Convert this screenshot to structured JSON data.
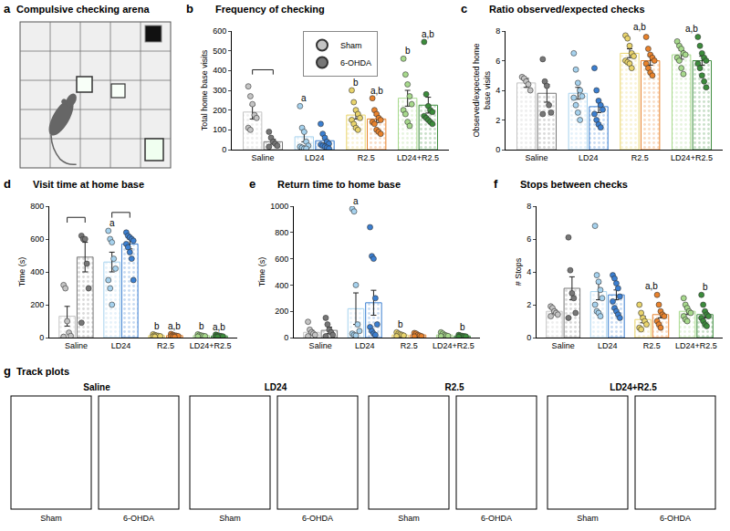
{
  "chart_data": [
    {
      "type": "bar",
      "letter": "b",
      "title": "Frequency of checking",
      "y_label": "Total home base visits",
      "categories": [
        "Saline",
        "LD24",
        "R2.5",
        "LD24+R2.5"
      ],
      "ylim": [
        0,
        600
      ],
      "yticks": [
        0,
        100,
        200,
        300,
        400,
        500,
        600
      ],
      "legend": "top",
      "brackets": [
        "Saline"
      ],
      "series": [
        {
          "name": "Sham",
          "colors": [
            "#c4c4c4",
            "#a6d2ee",
            "#e9d46c",
            "#a7d98c"
          ],
          "values": [
            190,
            65,
            175,
            260
          ],
          "errors": [
            35,
            25,
            20,
            40
          ],
          "points": [
            [
              320,
              270,
              230,
              175,
              160,
              110,
              100
            ],
            [
              220,
              110,
              90,
              40,
              20,
              15,
              10,
              5,
              5
            ],
            [
              300,
              240,
              200,
              180,
              160,
              150,
              130,
              110,
              100
            ],
            [
              460,
              380,
              330,
              270,
              230,
              200,
              180,
              140,
              120
            ]
          ],
          "labels": [
            null,
            "a",
            "b",
            "b"
          ]
        },
        {
          "name": "6-OHDA",
          "colors": [
            "#777777",
            "#3b7fd1",
            "#e8822c",
            "#3c8c3c"
          ],
          "values": [
            40,
            45,
            155,
            225
          ],
          "errors": [
            12,
            12,
            18,
            40
          ],
          "points": [
            [
              90,
              60,
              40,
              30,
              20,
              15
            ],
            [
              130,
              80,
              60,
              40,
              30,
              25,
              20,
              15,
              10,
              5
            ],
            [
              260,
              200,
              180,
              160,
              150,
              140,
              130,
              100,
              90,
              80
            ],
            [
              545,
              280,
              220,
              200,
              190,
              170,
              160,
              150,
              140,
              130
            ]
          ],
          "labels": [
            null,
            null,
            "a,b",
            "a,b"
          ]
        }
      ]
    },
    {
      "type": "bar",
      "letter": "c",
      "title": "Ratio observed/expected checks",
      "y_label": "Observed/expected home base visits",
      "categories": [
        "Saline",
        "LD24",
        "R2.5",
        "LD24+R2.5"
      ],
      "ylim": [
        0,
        8
      ],
      "yticks": [
        0,
        2,
        4,
        6,
        8
      ],
      "group_labels": [
        null,
        null,
        "a,b",
        "a,b"
      ],
      "series": [
        {
          "name": "Sham",
          "colors": [
            "#c4c4c4",
            "#a6d2ee",
            "#e9d46c",
            "#a7d98c"
          ],
          "values": [
            4.5,
            3.8,
            6.5,
            6.4
          ],
          "errors": [
            0.3,
            0.4,
            0.3,
            0.3
          ],
          "points": [
            [
              4.9,
              4.8,
              4.6,
              4.4,
              4.0
            ],
            [
              6.5,
              5.4,
              4.5,
              4.0,
              3.6,
              3.5,
              3.0,
              2.5,
              2.0
            ],
            [
              7.7,
              7.5,
              7.0,
              6.5,
              6.3,
              6.0,
              5.9,
              5.8,
              5.5
            ],
            [
              7.3,
              7.0,
              6.8,
              6.5,
              6.4,
              6.2,
              6.0,
              5.5,
              5.1
            ]
          ]
        },
        {
          "name": "6-OHDA",
          "colors": [
            "#777777",
            "#3b7fd1",
            "#e8822c",
            "#3c8c3c"
          ],
          "values": [
            3.8,
            2.9,
            6.0,
            6.0
          ],
          "errors": [
            0.6,
            0.4,
            0.3,
            0.3
          ],
          "points": [
            [
              6.1,
              4.6,
              4.3,
              3.0,
              2.5,
              2.4
            ],
            [
              5.5,
              4.0,
              3.3,
              3.0,
              2.7,
              2.4,
              2.0,
              1.7,
              1.5
            ],
            [
              7.6,
              6.8,
              6.4,
              6.2,
              6.0,
              5.8,
              5.5,
              5.2,
              5.0
            ],
            [
              7.6,
              7.0,
              6.5,
              6.2,
              6.0,
              5.8,
              5.5,
              5.0,
              4.6,
              4.2
            ]
          ]
        }
      ]
    },
    {
      "type": "bar",
      "letter": "d",
      "title": "Visit time at home base",
      "y_label": "Time (s)",
      "categories": [
        "Saline",
        "LD24",
        "R2.5",
        "LD24+R2.5"
      ],
      "ylim": [
        0,
        800
      ],
      "yticks": [
        0,
        200,
        400,
        600,
        800
      ],
      "brackets": [
        "Saline",
        "LD24"
      ],
      "series": [
        {
          "name": "Sham",
          "colors": [
            "#c4c4c4",
            "#a6d2ee",
            "#e9d46c",
            "#a7d98c"
          ],
          "values": [
            130,
            460,
            12,
            12
          ],
          "errors": [
            60,
            60,
            2,
            2
          ],
          "points": [
            [
              320,
              300,
              100,
              30,
              10,
              5
            ],
            [
              650,
              600,
              580,
              480,
              420,
              350,
              300,
              200
            ],
            [
              20,
              15,
              12,
              10,
              8,
              6,
              5
            ],
            [
              20,
              15,
              12,
              10,
              8,
              6
            ]
          ],
          "labels": [
            null,
            "a",
            "b",
            "b"
          ]
        },
        {
          "name": "6-OHDA",
          "colors": [
            "#777777",
            "#3b7fd1",
            "#e8822c",
            "#3c8c3c"
          ],
          "values": [
            490,
            570,
            12,
            10
          ],
          "errors": [
            90,
            30,
            2,
            2
          ],
          "points": [
            [
              620,
              600,
              600,
              450,
              300,
              90
            ],
            [
              640,
              620,
              610,
              600,
              590,
              570,
              550,
              520,
              480,
              350
            ],
            [
              22,
              16,
              13,
              11,
              9,
              7,
              5,
              4
            ],
            [
              18,
              14,
              11,
              9,
              7,
              5,
              4
            ]
          ],
          "labels": [
            null,
            null,
            "a,b",
            "a,b"
          ]
        }
      ]
    },
    {
      "type": "bar",
      "letter": "e",
      "title": "Return time to home base",
      "y_label": "Time (s)",
      "categories": [
        "Saline",
        "LD24",
        "R2.5",
        "LD24+R2.5"
      ],
      "ylim": [
        0,
        1000
      ],
      "yticks": [
        0,
        200,
        400,
        600,
        800,
        1000
      ],
      "series": [
        {
          "name": "Sham",
          "colors": [
            "#c4c4c4",
            "#a6d2ee",
            "#e9d46c",
            "#a7d98c"
          ],
          "values": [
            40,
            220,
            20,
            20
          ],
          "errors": [
            15,
            120,
            4,
            4
          ],
          "points": [
            [
              120,
              60,
              40,
              30,
              20,
              10
            ],
            [
              980,
              960,
              400,
              100,
              50,
              30,
              20,
              15
            ],
            [
              40,
              30,
              25,
              20,
              15,
              10
            ],
            [
              40,
              30,
              20,
              15,
              12,
              10
            ]
          ],
          "labels": [
            null,
            "a",
            "b",
            null
          ]
        },
        {
          "name": "6-OHDA",
          "colors": [
            "#777777",
            "#3b7fd1",
            "#e8822c",
            "#3c8c3c"
          ],
          "values": [
            55,
            265,
            20,
            12
          ],
          "errors": [
            25,
            95,
            4,
            2
          ],
          "points": [
            [
              150,
              100,
              60,
              40,
              20,
              10
            ],
            [
              840,
              620,
              600,
              300,
              100,
              80,
              50,
              30,
              20
            ],
            [
              35,
              30,
              20,
              15,
              10,
              8
            ],
            [
              20,
              15,
              12,
              10,
              8,
              5
            ]
          ],
          "labels": [
            null,
            null,
            null,
            "b"
          ]
        }
      ]
    },
    {
      "type": "bar",
      "letter": "f",
      "title": "Stops between checks",
      "y_label": "# Stops",
      "categories": [
        "Saline",
        "LD24",
        "R2.5",
        "LD24+R2.5"
      ],
      "ylim": [
        0,
        8
      ],
      "yticks": [
        0,
        2,
        4,
        6,
        8
      ],
      "group_labels": [
        null,
        null,
        "a,b",
        null
      ],
      "series": [
        {
          "name": "Sham",
          "colors": [
            "#c4c4c4",
            "#a6d2ee",
            "#e9d46c",
            "#a7d98c"
          ],
          "values": [
            1.6,
            2.8,
            1.1,
            1.6
          ],
          "errors": [
            0.1,
            0.5,
            0.2,
            0.2
          ],
          "points": [
            [
              1.9,
              1.8,
              1.6,
              1.5,
              1.4,
              1.3
            ],
            [
              6.8,
              3.8,
              3.4,
              2.9,
              2.4,
              2.0,
              1.6,
              1.5,
              1.3
            ],
            [
              2.0,
              1.5,
              1.2,
              1.0,
              0.8,
              0.6,
              0.5
            ],
            [
              2.4,
              2.0,
              1.8,
              1.6,
              1.5,
              1.3,
              1.1,
              1.0
            ]
          ]
        },
        {
          "name": "6-OHDA",
          "colors": [
            "#777777",
            "#3b7fd1",
            "#e8822c",
            "#3c8c3c"
          ],
          "values": [
            3.0,
            2.6,
            1.4,
            1.4
          ],
          "errors": [
            0.7,
            0.3,
            0.2,
            0.2
          ],
          "points": [
            [
              6.1,
              4.1,
              2.7,
              2.4,
              1.5,
              1.2
            ],
            [
              3.8,
              3.6,
              3.3,
              3.0,
              2.5,
              2.2,
              1.8,
              1.6,
              1.4,
              1.2
            ],
            [
              2.6,
              2.0,
              1.6,
              1.4,
              1.3,
              1.0,
              0.8,
              0.6
            ],
            [
              2.6,
              2.0,
              1.6,
              1.4,
              1.3,
              1.2,
              1.0,
              0.8,
              0.7
            ]
          ],
          "labels": [
            null,
            null,
            null,
            "b"
          ]
        }
      ]
    }
  ],
  "panels": {
    "a": {
      "letter": "a",
      "title": "Compulsive checking arena"
    },
    "g": {
      "letter": "g",
      "title": "Track plots",
      "groups": [
        "Saline",
        "LD24",
        "R2.5",
        "LD24+R2.5"
      ],
      "conditions": [
        "Sham",
        "6-OHDA"
      ]
    }
  }
}
